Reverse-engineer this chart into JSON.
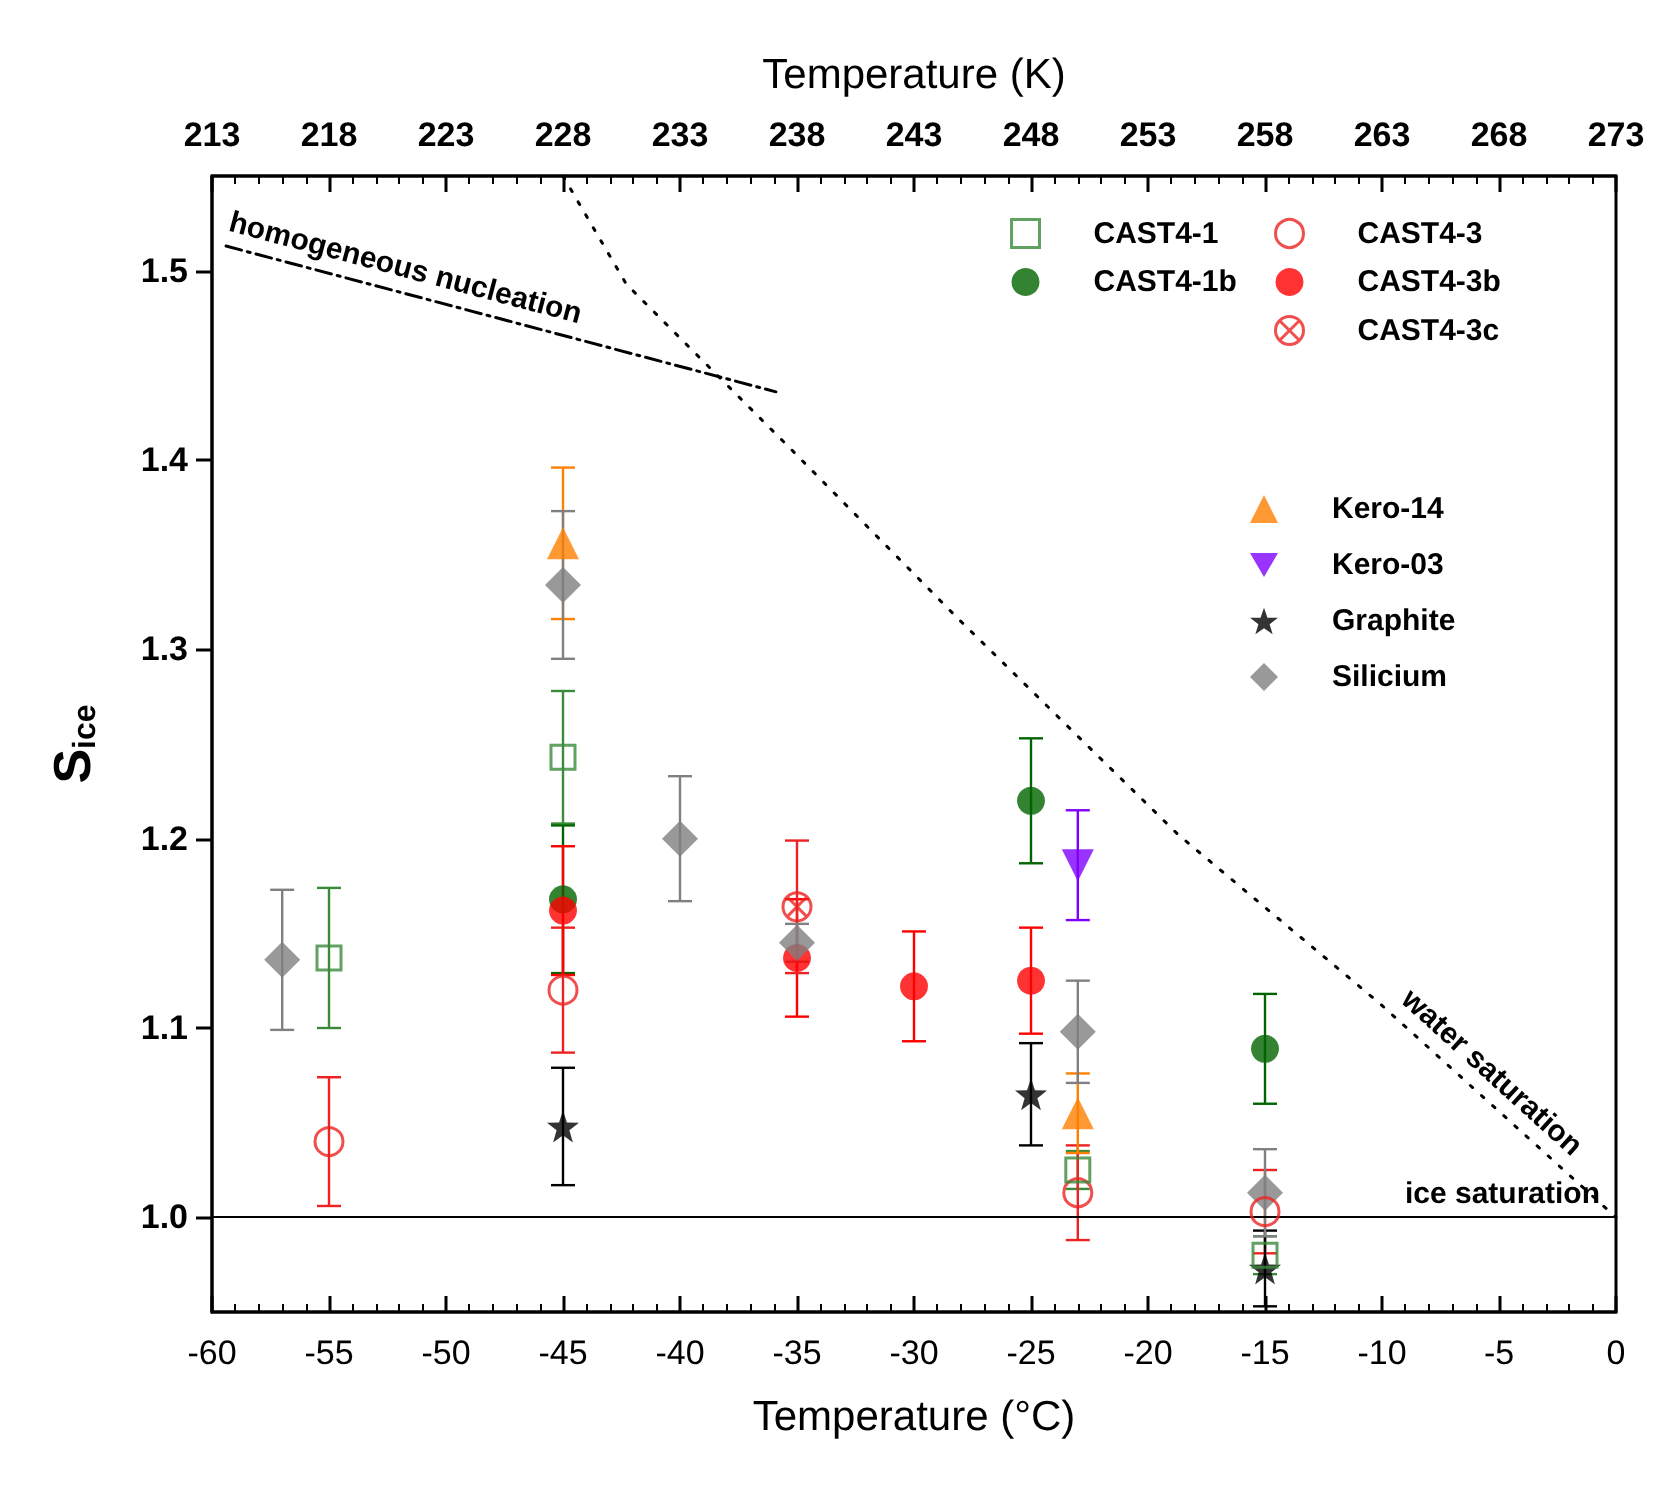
{
  "chart_data": {
    "type": "scatter",
    "xlabel": "Temperature (°C)",
    "x2label": "Temperature (K)",
    "ylabel": "S$_{ice}$",
    "xlim": [
      -60,
      0
    ],
    "xticks": [
      -60,
      -55,
      -50,
      -45,
      -40,
      -35,
      -30,
      -25,
      -20,
      -15,
      -10,
      -5,
      0
    ],
    "x2lim": [
      213,
      273
    ],
    "x2ticks": [
      213,
      218,
      223,
      228,
      233,
      238,
      243,
      248,
      253,
      258,
      263,
      268,
      273
    ],
    "ylim": [
      0.95,
      1.55
    ],
    "yticks": [
      {
        "value": 1.0,
        "label": "1.0"
      },
      {
        "value": 1.1,
        "label": "1.1"
      },
      {
        "value": 1.2,
        "label": "1.2"
      },
      {
        "value": 1.3,
        "label": "1.3"
      },
      {
        "value": 1.4,
        "label": "1.4"
      },
      {
        "value": 1.5,
        "label": "1.5"
      }
    ],
    "grid": false,
    "legend": "top right",
    "series": [
      {
        "name": "CAST4-1",
        "color": "#3a8a3a",
        "marker": "square_open",
        "x": [
          -55,
          -45,
          -23,
          -15
        ],
        "values": [
          1.137,
          1.243,
          1.025,
          0.98
        ],
        "errors": [
          0.037,
          0.035,
          0.01,
          0.01
        ]
      },
      {
        "name": "CAST4-1b",
        "color": "#006400",
        "marker": "circle",
        "x": [
          -45,
          -25,
          -15
        ],
        "values": [
          1.168,
          1.22,
          1.089
        ],
        "errors": [
          0.039,
          0.033,
          0.029
        ]
      },
      {
        "name": "CAST4-3",
        "color": "#ee2222",
        "marker": "circle_open",
        "x": [
          -55,
          -45,
          -23,
          -15
        ],
        "values": [
          1.04,
          1.12,
          1.013,
          1.003
        ],
        "errors": [
          0.034,
          0.033,
          0.025,
          0.022
        ]
      },
      {
        "name": "CAST4-3b",
        "color": "#ff0000",
        "marker": "circle",
        "x": [
          -45,
          -35,
          -30,
          -25
        ],
        "values": [
          1.162,
          1.137,
          1.122,
          1.125
        ],
        "errors": [
          0.034,
          0.031,
          0.029,
          0.028
        ]
      },
      {
        "name": "CAST4-3c",
        "color": "#ee2222",
        "marker": "cross",
        "x": [
          -35
        ],
        "values": [
          1.164
        ],
        "errors": [
          0.035
        ]
      },
      {
        "name": "Kero-14",
        "color": "#ff8000",
        "marker": "triangle",
        "x": [
          -45,
          -23
        ],
        "values": [
          1.356,
          1.055
        ],
        "errors": [
          0.04,
          0.021
        ]
      },
      {
        "name": "Kero-03",
        "color": "#8000ff",
        "marker": "triangle_down",
        "x": [
          -23
        ],
        "values": [
          1.186
        ],
        "errors": [
          0.029
        ]
      },
      {
        "name": "Graphite",
        "color": "#000000",
        "marker": "star",
        "x": [
          -45,
          -25,
          -15
        ],
        "values": [
          1.048,
          1.065,
          0.973
        ],
        "errors": [
          0.031,
          0.027,
          0.02
        ]
      },
      {
        "name": "Silicium",
        "color": "#808080",
        "marker": "diamond",
        "x": [
          -57,
          -45,
          -40,
          -35,
          -23,
          -15
        ],
        "values": [
          1.136,
          1.334,
          1.2,
          1.145,
          1.098,
          1.013
        ],
        "errors": [
          0.037,
          0.039,
          0.033,
          0.01,
          0.027,
          0.023
        ]
      },
      {
        "type": "line",
        "color": "#000000",
        "line_style": "dashdot",
        "marker": "none",
        "x": [
          -59.4,
          -35.9
        ],
        "values": [
          1.513,
          1.436
        ]
      },
      {
        "type": "line",
        "color": "#000000",
        "line_style": "dotted",
        "marker": "none",
        "x": [
          -45,
          -42.3,
          -35.2,
          -28.1,
          -18.7,
          -10.1,
          0
        ],
        "values": [
          1.55,
          1.493,
          1.405,
          1.316,
          1.202,
          1.113,
          1.0
        ]
      }
    ],
    "ref_lines": [
      {
        "axis": "y",
        "value": 1.0,
        "label": "ice saturation",
        "color": "#000000"
      }
    ],
    "annotations": [
      {
        "text": "homogeneous nucleation",
        "x": -52,
        "y": 1.489
      },
      {
        "text": "water saturation",
        "x": -6,
        "y": 1.067
      }
    ]
  }
}
